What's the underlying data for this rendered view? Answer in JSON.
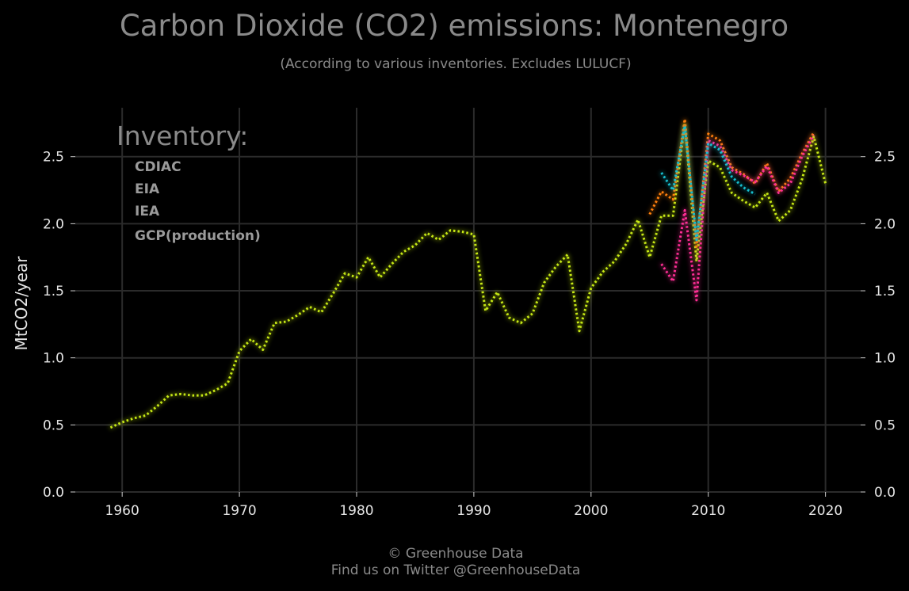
{
  "chart_data": {
    "type": "line",
    "title": "Carbon Dioxide (CO2) emissions: Montenegro",
    "subtitle": "(According to various inventories. Excludes LULUCF)",
    "ylabel": "MtCO2/year",
    "xlabel": "",
    "xlim": [
      1956,
      2023
    ],
    "ylim": [
      0,
      2.9
    ],
    "x_ticks": [
      1960,
      1970,
      1980,
      1990,
      2000,
      2010,
      2020
    ],
    "y_ticks": [
      0.0,
      0.5,
      1.0,
      1.5,
      2.0,
      2.5
    ],
    "y_tick_labels": [
      "0.0",
      "0.5",
      "1.0",
      "1.5",
      "2.0",
      "2.5"
    ],
    "grid": true,
    "legend": {
      "title": "Inventory:",
      "position": "top-left"
    },
    "series": [
      {
        "name": "CDIAC",
        "color": "#17becf",
        "x": [
          2006,
          2007,
          2008,
          2009,
          2010,
          2011,
          2012,
          2013,
          2014
        ],
        "y": [
          2.38,
          2.25,
          2.73,
          1.88,
          2.6,
          2.55,
          2.35,
          2.27,
          2.22
        ]
      },
      {
        "name": "EIA",
        "color": "#ff2d95",
        "x": [
          2006,
          2007,
          2008,
          2009,
          2010,
          2011,
          2012,
          2013,
          2014,
          2015,
          2016,
          2017,
          2018,
          2019
        ],
        "y": [
          1.7,
          1.57,
          2.1,
          1.43,
          2.62,
          2.58,
          2.4,
          2.36,
          2.31,
          2.43,
          2.23,
          2.3,
          2.5,
          2.66
        ]
      },
      {
        "name": "IEA",
        "color": "#ff7f0e",
        "x": [
          2005,
          2006,
          2007,
          2008,
          2009,
          2010,
          2011,
          2012,
          2013,
          2014,
          2015,
          2016,
          2017,
          2018,
          2019
        ],
        "y": [
          2.07,
          2.24,
          2.18,
          2.78,
          1.83,
          2.67,
          2.62,
          2.42,
          2.37,
          2.3,
          2.45,
          2.24,
          2.34,
          2.52,
          2.68
        ]
      },
      {
        "name": "GCP(production)",
        "color": "#c6e814",
        "x": [
          1959,
          1960,
          1961,
          1962,
          1963,
          1964,
          1965,
          1966,
          1967,
          1968,
          1969,
          1970,
          1971,
          1972,
          1973,
          1974,
          1975,
          1976,
          1977,
          1978,
          1979,
          1980,
          1981,
          1982,
          1983,
          1984,
          1985,
          1986,
          1987,
          1988,
          1989,
          1990,
          1991,
          1992,
          1993,
          1994,
          1995,
          1996,
          1997,
          1998,
          1999,
          2000,
          2001,
          2002,
          2003,
          2004,
          2005,
          2006,
          2007,
          2008,
          2009,
          2010,
          2011,
          2012,
          2013,
          2014,
          2015,
          2016,
          2017,
          2018,
          2019,
          2020
        ],
        "y": [
          0.48,
          0.52,
          0.55,
          0.57,
          0.64,
          0.72,
          0.73,
          0.72,
          0.72,
          0.76,
          0.81,
          1.05,
          1.14,
          1.06,
          1.26,
          1.27,
          1.32,
          1.38,
          1.34,
          1.48,
          1.63,
          1.6,
          1.75,
          1.6,
          1.7,
          1.79,
          1.84,
          1.93,
          1.88,
          1.95,
          1.94,
          1.92,
          1.35,
          1.49,
          1.3,
          1.26,
          1.33,
          1.56,
          1.68,
          1.77,
          1.2,
          1.52,
          1.64,
          1.72,
          1.85,
          2.03,
          1.75,
          2.06,
          2.06,
          2.75,
          1.72,
          2.47,
          2.42,
          2.23,
          2.17,
          2.12,
          2.23,
          2.02,
          2.1,
          2.33,
          2.65,
          2.3
        ]
      }
    ],
    "credit": {
      "line1": "© Greenhouse Data",
      "line2": "Find us on Twitter @GreenhouseData"
    }
  }
}
